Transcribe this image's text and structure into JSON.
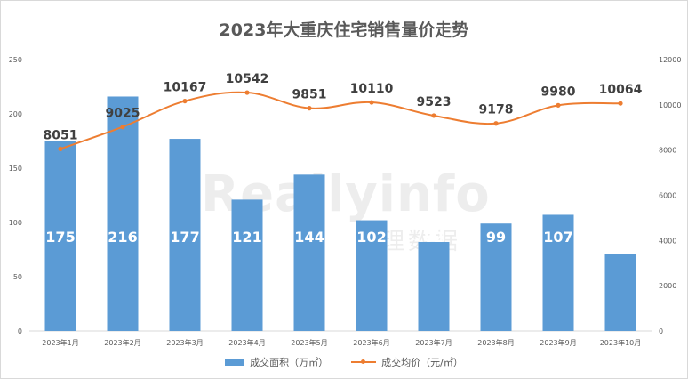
{
  "chart_data": {
    "type": "bar+line",
    "title": "2023年大重庆住宅销售量价走势",
    "categories": [
      "2023年1月",
      "2023年2月",
      "2023年3月",
      "2023年4月",
      "2023年5月",
      "2023年6月",
      "2023年7月",
      "2023年8月",
      "2023年9月",
      "2023年10月"
    ],
    "series": [
      {
        "name": "成交面积（万㎡）",
        "type": "bar",
        "axis": "left",
        "color": "#5b9bd5",
        "values": [
          175,
          216,
          177,
          121,
          144,
          102,
          82,
          99,
          107,
          71
        ]
      },
      {
        "name": "成交均价（元/㎡）",
        "type": "line",
        "axis": "right",
        "color": "#ed7d31",
        "values": [
          8051,
          9025,
          10167,
          10542,
          9851,
          10110,
          9523,
          9178,
          9980,
          10064
        ]
      }
    ],
    "y_left": {
      "ylim": [
        0,
        250
      ],
      "ticks": [
        0,
        50,
        100,
        150,
        200,
        250
      ]
    },
    "y_right": {
      "ylim": [
        0,
        12000
      ],
      "ticks": [
        0,
        2000,
        4000,
        6000,
        8000,
        10000,
        12000
      ]
    },
    "legend": "bottom",
    "grid": false
  },
  "watermark": {
    "main": "Reallyinfo",
    "sub": "锐理数据"
  }
}
